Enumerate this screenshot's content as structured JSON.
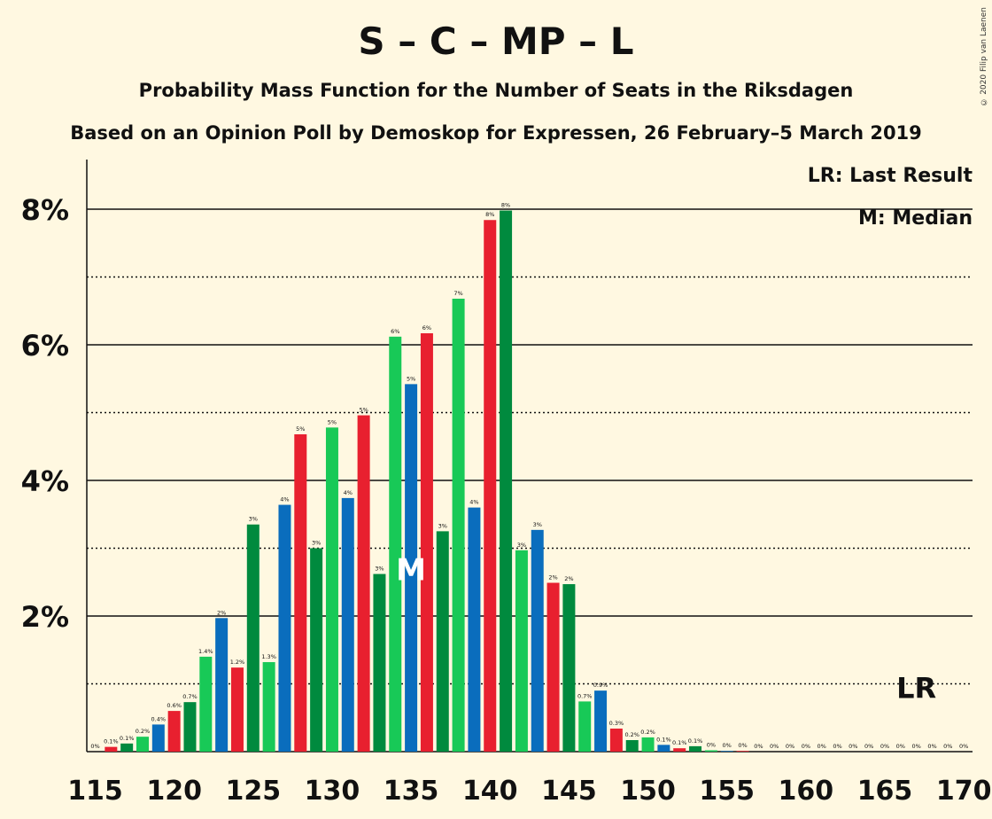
{
  "title": "S – C – MP – L",
  "subtitle": "Probability Mass Function for the Number of Seats in the Riksdagen",
  "subtitle2": "Based on an Opinion Poll by Demoskop for Expressen, 26 February–5 March 2019",
  "copyright": "© 2020 Filip van Laenen",
  "legend": {
    "last_result": "LR: Last Result",
    "median": "M: Median"
  },
  "colors": {
    "background": "#fff8e1",
    "S": "#e8202f",
    "C": "#008a3e",
    "MP": "#18c957",
    "L": "#0a6dbd"
  },
  "chart_data": {
    "type": "bar",
    "x": [
      115,
      116,
      117,
      118,
      119,
      120,
      121,
      122,
      123,
      124,
      125,
      126,
      127,
      128,
      129,
      130,
      131,
      132,
      133,
      134,
      135,
      136,
      137,
      138,
      139,
      140,
      141,
      142,
      143,
      144,
      145,
      146,
      147,
      148,
      149,
      150,
      151,
      152,
      153,
      154,
      155,
      156,
      157,
      158,
      159,
      160,
      161,
      162,
      163,
      164,
      165,
      166,
      167,
      168,
      169,
      170
    ],
    "values": [
      0,
      0.07,
      0.12,
      0.22,
      0.4,
      0.6,
      0.73,
      1.4,
      1.97,
      1.24,
      3.35,
      1.32,
      3.64,
      4.68,
      3.0,
      4.78,
      3.74,
      4.96,
      2.62,
      6.12,
      5.42,
      6.17,
      3.25,
      6.68,
      3.6,
      7.84,
      7.98,
      2.97,
      3.27,
      2.49,
      2.47,
      0.74,
      0.9,
      0.34,
      0.17,
      0.21,
      0.1,
      0.05,
      0.08,
      0.02,
      0.01,
      0.01,
      0,
      0,
      0,
      0,
      0,
      0,
      0,
      0,
      0,
      0,
      0,
      0,
      0,
      0
    ],
    "labels": [
      "0%",
      "0.1%",
      "0.1%",
      "0.2%",
      "0.4%",
      "0.6%",
      "0.7%",
      "1.4%",
      "2%",
      "1.2%",
      "3%",
      "1.3%",
      "4%",
      "5%",
      "3%",
      "5%",
      "4%",
      "5%",
      "3%",
      "6%",
      "5%",
      "6%",
      "3%",
      "7%",
      "4%",
      "8%",
      "8%",
      "3%",
      "3%",
      "2%",
      "2%",
      "0.7%",
      "0.9%",
      "0.3%",
      "0.2%",
      "0.2%",
      "0.1%",
      "0.1%",
      "0.1%",
      "0%",
      "0%",
      "0%",
      "0%",
      "0%",
      "0%",
      "0%",
      "0%",
      "0%",
      "0%",
      "0%",
      "0%",
      "0%",
      "0%",
      "0%",
      "0%",
      "0%"
    ],
    "bar_colors": [
      "#e8202f",
      "#e8202f",
      "#008a3e",
      "#18c957",
      "#0a6dbd",
      "#e8202f",
      "#008a3e",
      "#18c957",
      "#0a6dbd",
      "#e8202f",
      "#008a3e",
      "#18c957",
      "#0a6dbd",
      "#e8202f",
      "#008a3e",
      "#18c957",
      "#0a6dbd",
      "#e8202f",
      "#008a3e",
      "#18c957",
      "#0a6dbd",
      "#e8202f",
      "#008a3e",
      "#18c957",
      "#0a6dbd",
      "#e8202f",
      "#008a3e",
      "#18c957",
      "#0a6dbd",
      "#e8202f",
      "#008a3e",
      "#18c957",
      "#0a6dbd",
      "#e8202f",
      "#008a3e",
      "#18c957",
      "#0a6dbd",
      "#e8202f",
      "#008a3e",
      "#18c957",
      "#0a6dbd",
      "#e8202f",
      "#008a3e",
      "#18c957",
      "#0a6dbd",
      "#e8202f",
      "#008a3e",
      "#18c957",
      "#0a6dbd",
      "#e8202f",
      "#008a3e",
      "#18c957",
      "#0a6dbd",
      "#e8202f",
      "#008a3e",
      "#18c957"
    ],
    "xticks": [
      115,
      120,
      125,
      130,
      135,
      140,
      145,
      150,
      155,
      160,
      165,
      170
    ],
    "ytick_values": [
      2,
      4,
      6,
      8
    ],
    "ytick_labels": [
      "2%",
      "4%",
      "6%",
      "8%"
    ],
    "ylim": [
      0,
      8.7
    ],
    "solid_gridlines": [
      2,
      4,
      6,
      8
    ],
    "dotted_gridlines": [
      1,
      3,
      5,
      7
    ],
    "median": 135,
    "median_label": "M",
    "last_result": 167,
    "last_result_label": "LR"
  }
}
